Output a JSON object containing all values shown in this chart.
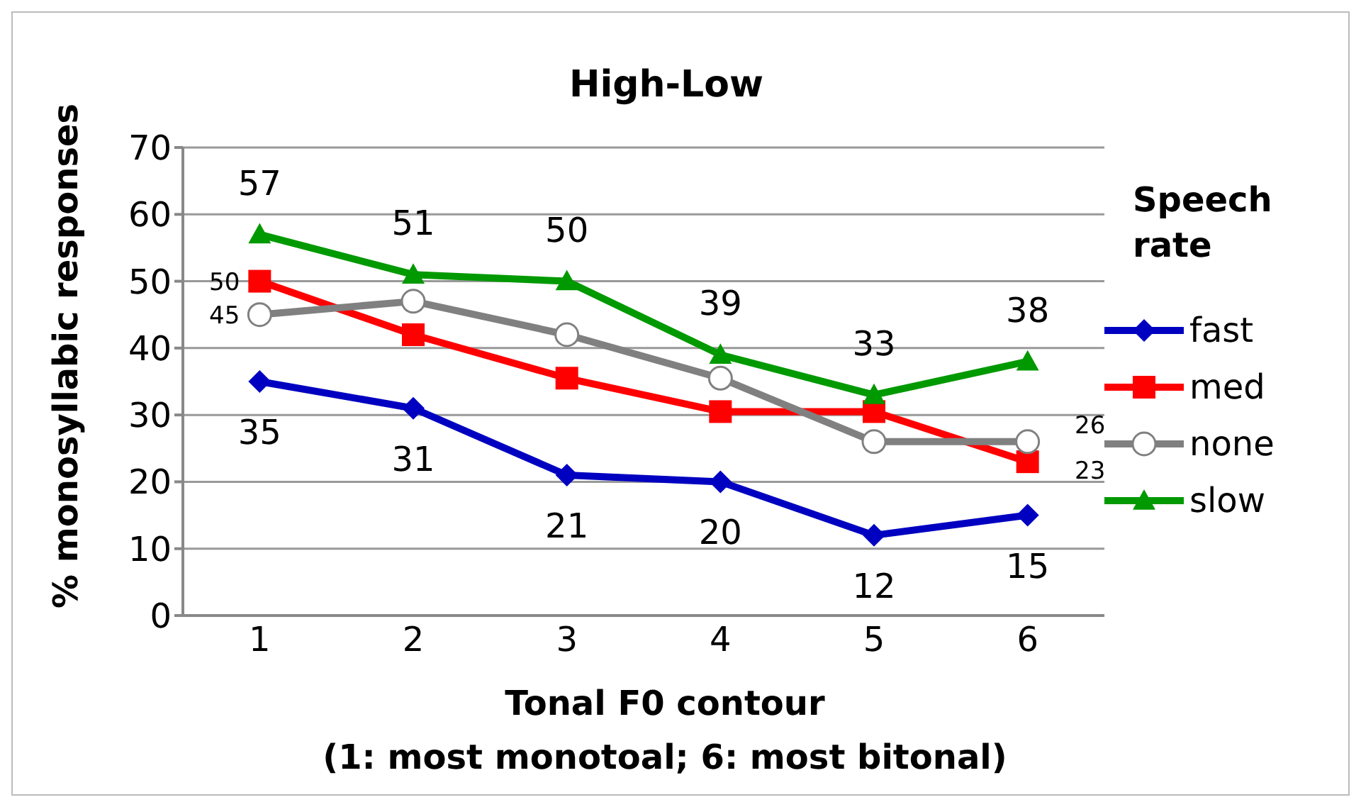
{
  "chart_data": {
    "type": "line",
    "title": "High-Low",
    "xlabel": "Tonal F0 contour\n(1: most monotoal; 6: most bitonal)",
    "ylabel": "% monosyllabic responses",
    "legend_title": "Speech rate",
    "categories": [
      "1",
      "2",
      "3",
      "4",
      "5",
      "6"
    ],
    "series": [
      {
        "name": "fast",
        "color": "#0000c0",
        "marker": "diamond",
        "values": [
          35,
          31,
          21,
          20,
          12,
          15
        ],
        "value_labels": [
          "35",
          "31",
          "21",
          "20",
          "12",
          "15"
        ]
      },
      {
        "name": "med",
        "color": "#ff0000",
        "marker": "square",
        "values": [
          50,
          42,
          35.5,
          30.5,
          30.5,
          23
        ],
        "value_labels": [
          "50",
          null,
          null,
          null,
          null,
          "23"
        ]
      },
      {
        "name": "none",
        "color": "#808080",
        "marker": "circle",
        "values": [
          45,
          47,
          42,
          35.5,
          26,
          26
        ],
        "value_labels": [
          "45",
          null,
          null,
          null,
          null,
          "26"
        ]
      },
      {
        "name": "slow",
        "color": "#009900",
        "marker": "triangle",
        "values": [
          57,
          51,
          50,
          39,
          33,
          38
        ],
        "value_labels": [
          "57",
          "51",
          "50",
          "39",
          "33",
          "38"
        ]
      }
    ],
    "ylim": [
      0,
      70
    ],
    "yticks": [
      0,
      10,
      20,
      30,
      40,
      50,
      60,
      70
    ],
    "grid": "y",
    "legend": "right",
    "line_style": "solid"
  }
}
